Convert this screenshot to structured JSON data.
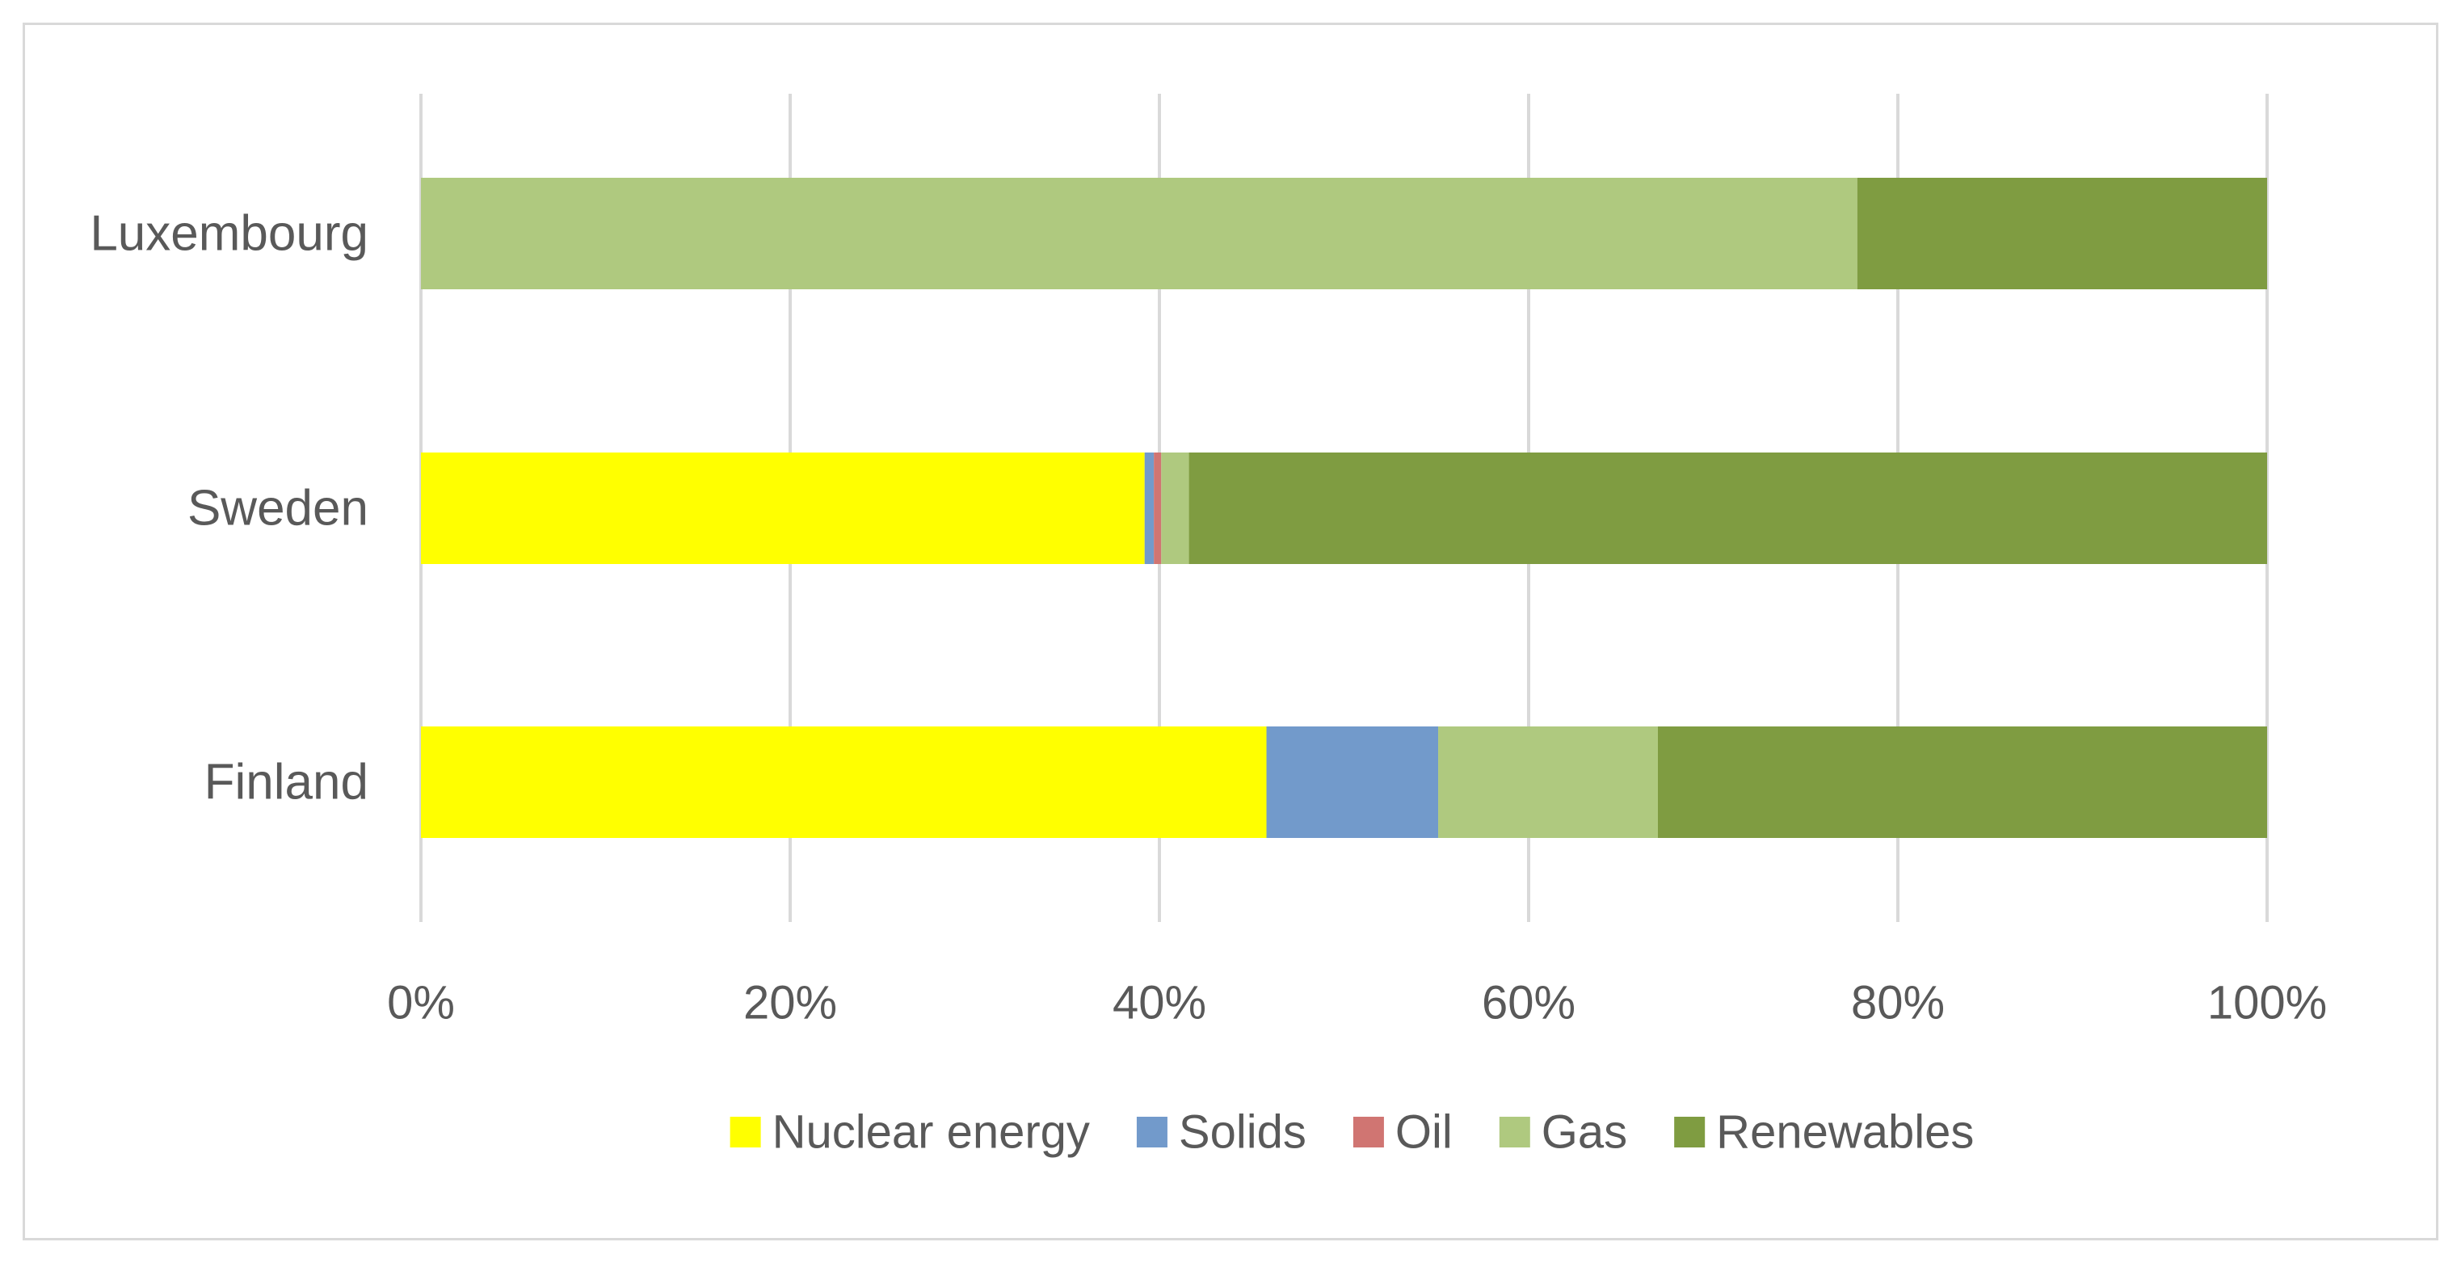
{
  "chart_data": {
    "type": "bar",
    "orientation": "horizontal",
    "stacked": "percent",
    "title": "",
    "xlabel": "",
    "ylabel": "",
    "xlim": [
      0,
      100
    ],
    "x_ticks": [
      "0%",
      "20%",
      "40%",
      "60%",
      "80%",
      "100%"
    ],
    "grid": true,
    "legend_position": "bottom",
    "categories": [
      "Luxembourg",
      "Sweden",
      "Finland"
    ],
    "series": [
      {
        "name": "Nuclear energy",
        "color": "#ffff00",
        "values": [
          0,
          39.2,
          45.8
        ]
      },
      {
        "name": "Solids",
        "color": "#729acb",
        "values": [
          0,
          0.5,
          9.3
        ]
      },
      {
        "name": "Oil",
        "color": "#d07572",
        "values": [
          0,
          0.4,
          0
        ]
      },
      {
        "name": "Gas",
        "color": "#afc97f",
        "values": [
          77.8,
          1.5,
          11.9
        ]
      },
      {
        "name": "Renewables",
        "color": "#7f9c41",
        "values": [
          22.2,
          58.4,
          33.0
        ]
      }
    ]
  },
  "colors": {
    "gridline": "#d9d9d9",
    "text": "#595959",
    "frame": "#d9d9d9"
  }
}
